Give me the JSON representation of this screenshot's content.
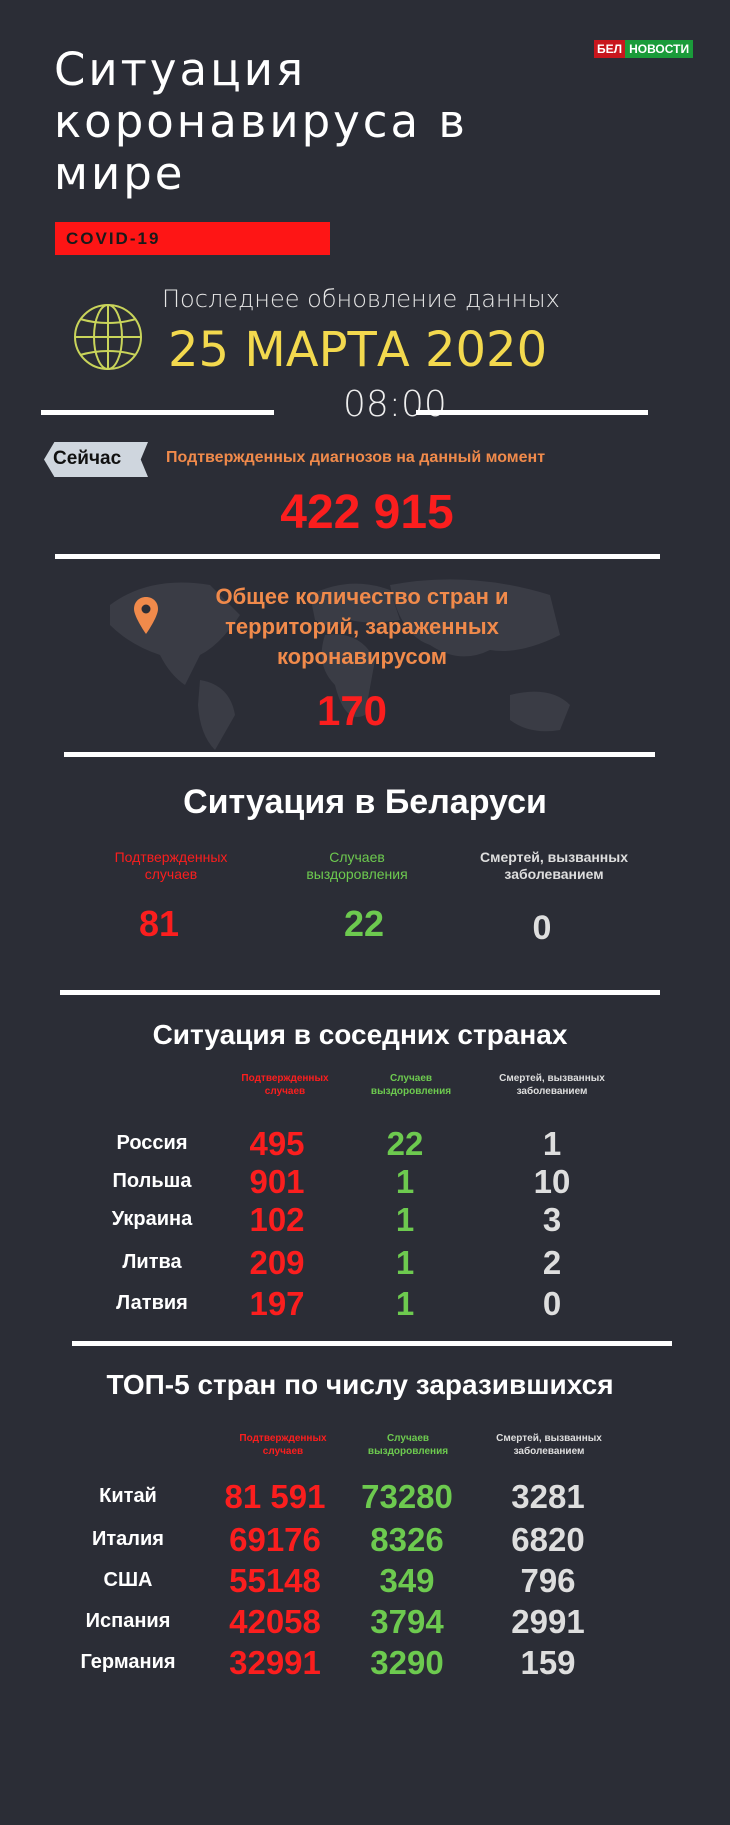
{
  "logo": {
    "part1": "БЕЛ",
    "part2": "НОВОСТИ"
  },
  "header": {
    "title_lines": [
      "Ситуация",
      "коронавируса в",
      "мире"
    ],
    "tag": "COVID-19"
  },
  "update": {
    "label": "Последнее обновление данных",
    "date": "25 МАРТА 2020",
    "time": "08:00"
  },
  "now": {
    "badge": "Сейчас",
    "label": "Подтвержденных диагнозов на данный момент",
    "value": "422 915"
  },
  "countries": {
    "label_lines": [
      "Общее количество стран и",
      "территорий, зараженных",
      "коронавирусом"
    ],
    "value": "170"
  },
  "belarus": {
    "title": "Ситуация в Беларуси",
    "headers": [
      [
        "Подтвержденных",
        "случаев"
      ],
      [
        "Случаев",
        "выздоровления"
      ],
      [
        "Смертей, вызванных",
        "заболеванием"
      ]
    ],
    "values": [
      "81",
      "22",
      "0"
    ]
  },
  "neighbors": {
    "title": "Ситуация в соседних странах",
    "headers": [
      [
        "Подтвержденных",
        "случаев"
      ],
      [
        "Случаев",
        "выздоровления"
      ],
      [
        "Смертей, вызванных",
        "заболеванием"
      ]
    ],
    "rows": [
      {
        "name": "Россия",
        "confirmed": "495",
        "recovered": "22",
        "deaths": "1"
      },
      {
        "name": "Польша",
        "confirmed": "901",
        "recovered": "1",
        "deaths": "10"
      },
      {
        "name": "Украина",
        "confirmed": "102",
        "recovered": "1",
        "deaths": "3"
      },
      {
        "name": "Литва",
        "confirmed": "209",
        "recovered": "1",
        "deaths": "2"
      },
      {
        "name": "Латвия",
        "confirmed": "197",
        "recovered": "1",
        "deaths": "0"
      }
    ]
  },
  "top5": {
    "title": "ТОП-5 стран по числу заразившихся",
    "headers": [
      [
        "Подтвержденных",
        "случаев"
      ],
      [
        "Случаев",
        "выздоровления"
      ],
      [
        "Смертей, вызванных",
        "заболеванием"
      ]
    ],
    "rows": [
      {
        "name": "Китай",
        "confirmed": "81 591",
        "recovered": "73280",
        "deaths": "3281"
      },
      {
        "name": "Италия",
        "confirmed": "69176",
        "recovered": "8326",
        "deaths": "6820"
      },
      {
        "name": "США",
        "confirmed": "55148",
        "recovered": "349",
        "deaths": "796"
      },
      {
        "name": "Испания",
        "confirmed": "42058",
        "recovered": "3794",
        "deaths": "2991"
      },
      {
        "name": "Германия",
        "confirmed": "32991",
        "recovered": "3290",
        "deaths": "159"
      }
    ]
  },
  "colors": {
    "background": "#2b2d36",
    "red": "#fb1e1e",
    "green": "#6dca4f",
    "orange": "#f08a4b",
    "yellow": "#f3d94e"
  },
  "icons": [
    "globe-icon",
    "map-pin-icon",
    "world-map-backdrop"
  ]
}
